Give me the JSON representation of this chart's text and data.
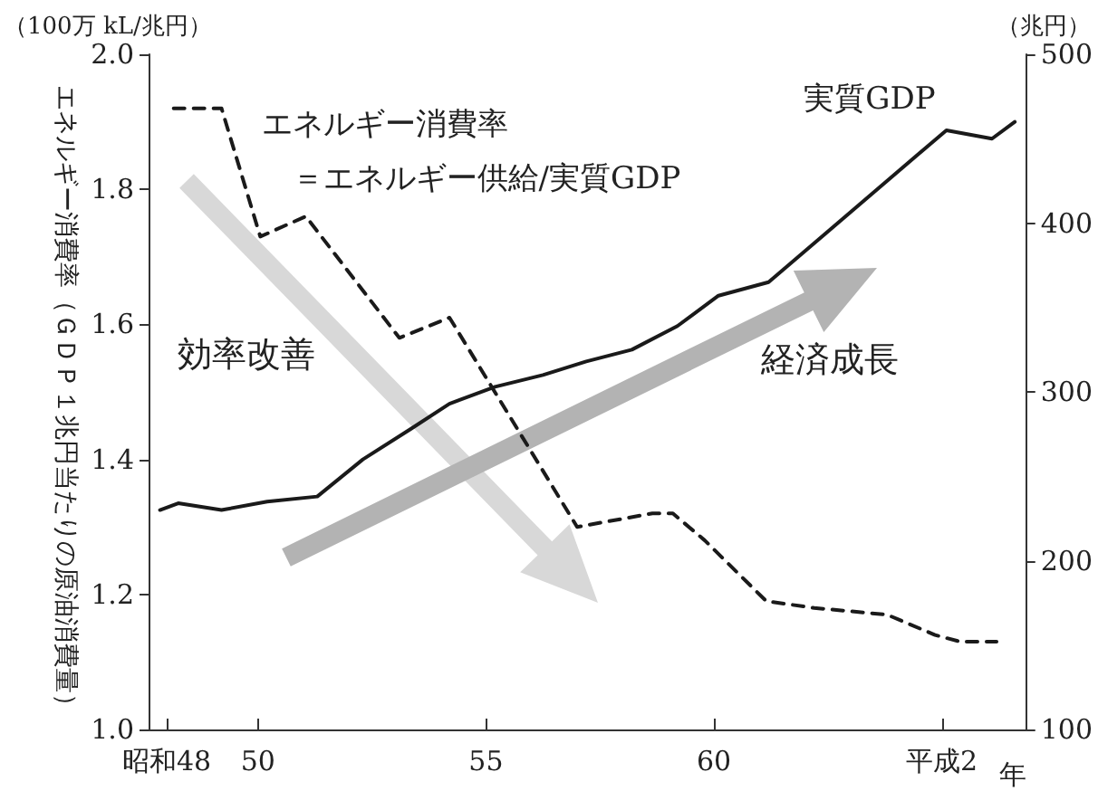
{
  "chart_data": {
    "type": "line",
    "ylabel": "エネルギー消費率（ＧＤＰ１兆円当たりの原油消費量）",
    "y2label": "（兆円）",
    "xlabel": "年",
    "annotations": [
      "（100万 kL/兆円）",
      "効率改善",
      "経済成長"
    ],
    "xlim": [
      47.6,
      66.85
    ],
    "xticks": [
      {
        "value": 48,
        "label": "昭和48"
      },
      50,
      55,
      60,
      {
        "value": 65,
        "label": "平成2"
      }
    ],
    "ylim": [
      1.0,
      2.0
    ],
    "yticks": [
      {
        "value": 1,
        "label": "1.0"
      },
      1.2,
      1.4,
      1.6,
      1.8,
      {
        "value": 2,
        "label": "2.0"
      }
    ],
    "y2lim": [
      100,
      500
    ],
    "y2ticks": [
      100,
      200,
      300,
      400,
      500
    ],
    "legend": false,
    "grid": false,
    "marker": "none",
    "series": [
      {
        "name": "エネルギー消費率＝エネルギー供給/実質GDP",
        "color": "#1a1a1a",
        "line_style": "dashed",
        "x": [
          48.15,
          49.2,
          50.05,
          51.05,
          53.1,
          54.2,
          57.0,
          58.65,
          59.1,
          59.8,
          61.15,
          62.2,
          63.8,
          64.85,
          65.4,
          66.2
        ],
        "values": [
          1.92,
          1.92,
          1.73,
          1.76,
          1.58,
          1.61,
          1.3,
          1.32,
          1.32,
          1.28,
          1.19,
          1.18,
          1.17,
          1.14,
          1.13,
          1.13
        ]
      },
      {
        "name": "実質GDP",
        "color": "#1a1a1a",
        "line_style": "solid",
        "axis": "y2",
        "x": [
          47.85,
          48.25,
          49.2,
          50.2,
          51.3,
          52.3,
          53.35,
          54.2,
          55.2,
          56.25,
          57.2,
          58.2,
          59.2,
          60.1,
          61.2,
          65.1,
          66.1,
          66.6
        ],
        "values": [
          230,
          234,
          230,
          235,
          238,
          260,
          278,
          293,
          303,
          310,
          318,
          325,
          339,
          357,
          365,
          455,
          450,
          460
        ]
      }
    ]
  }
}
